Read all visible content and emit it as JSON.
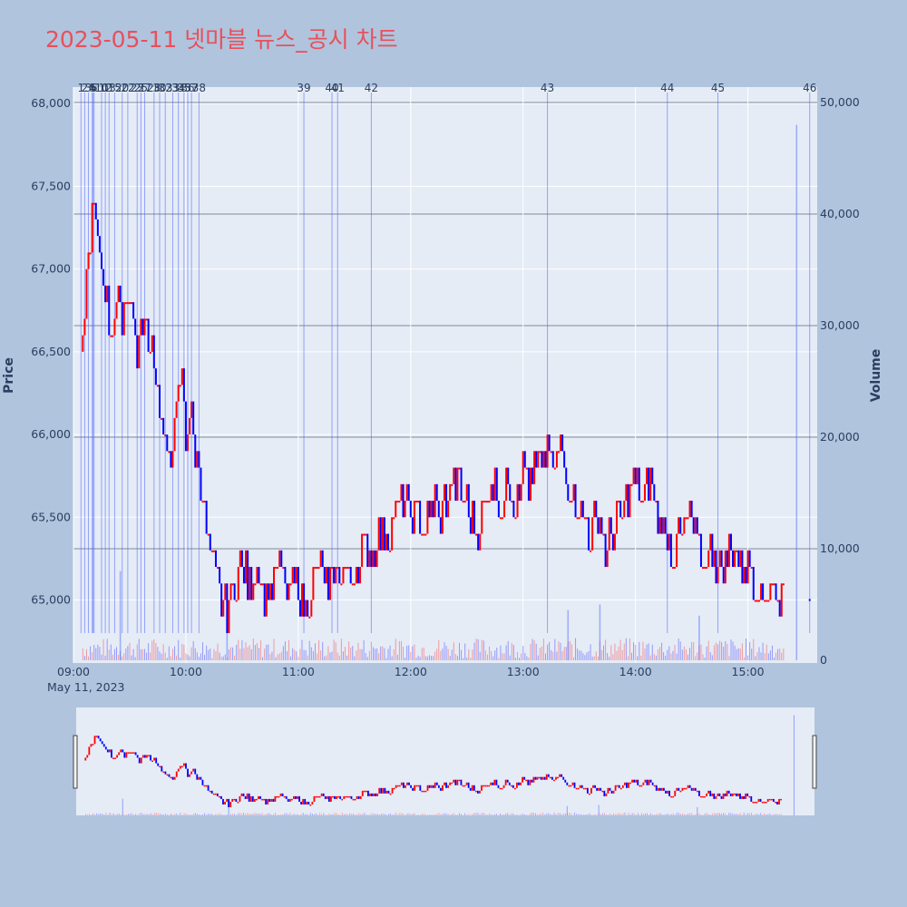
{
  "page": {
    "title": "2023-05-11 넷마블 뉴스_공시 차트",
    "title_color": "#e8505b",
    "background": "#b0c4de",
    "plot_background": "#e5ecf6"
  },
  "chart_data": {
    "type": "candlestick",
    "x_date_label": "May 11, 2023",
    "ylabel": "Price",
    "y2label": "Volume",
    "ylim": [
      64800,
      68100
    ],
    "y2lim": [
      0,
      51000
    ],
    "y_ticks": [
      {
        "v": 65000,
        "label": "65,000"
      },
      {
        "v": 65500,
        "label": "65,500"
      },
      {
        "v": 66000,
        "label": "66,000"
      },
      {
        "v": 66500,
        "label": "66,500"
      },
      {
        "v": 67000,
        "label": "67,000"
      },
      {
        "v": 67500,
        "label": "67,500"
      },
      {
        "v": 68000,
        "label": "68,000"
      }
    ],
    "y2_ticks": [
      {
        "v": 0,
        "label": "0"
      },
      {
        "v": 10000,
        "label": "10,000"
      },
      {
        "v": 20000,
        "label": "20,000"
      },
      {
        "v": 30000,
        "label": "30,000"
      },
      {
        "v": 40000,
        "label": "40,000"
      },
      {
        "v": 50000,
        "label": "50,000"
      }
    ],
    "x_range_minutes": [
      540,
      937
    ],
    "x_ticks": [
      {
        "m": 540,
        "label": "09:00"
      },
      {
        "m": 600,
        "label": "10:00"
      },
      {
        "m": 660,
        "label": "11:00"
      },
      {
        "m": 720,
        "label": "12:00"
      },
      {
        "m": 780,
        "label": "13:00"
      },
      {
        "m": 840,
        "label": "14:00"
      },
      {
        "m": 900,
        "label": "15:00"
      }
    ],
    "up_color": "#ff0000",
    "down_color": "#0000ff",
    "price_path": [
      [
        545,
        66500
      ],
      [
        547,
        67000
      ],
      [
        549,
        67200
      ],
      [
        551,
        67400
      ],
      [
        553,
        67100
      ],
      [
        556,
        67000
      ],
      [
        558,
        66800
      ],
      [
        560,
        66600
      ],
      [
        563,
        66800
      ],
      [
        566,
        66700
      ],
      [
        568,
        66800
      ],
      [
        570,
        66900
      ],
      [
        572,
        66700
      ],
      [
        574,
        66500
      ],
      [
        576,
        66600
      ],
      [
        578,
        66700
      ],
      [
        580,
        66500
      ],
      [
        582,
        66600
      ],
      [
        584,
        66300
      ],
      [
        586,
        66200
      ],
      [
        588,
        66000
      ],
      [
        590,
        65800
      ],
      [
        592,
        65900
      ],
      [
        594,
        66000
      ],
      [
        596,
        66200
      ],
      [
        598,
        66300
      ],
      [
        600,
        66000
      ],
      [
        602,
        66100
      ],
      [
        604,
        66000
      ],
      [
        606,
        65800
      ],
      [
        608,
        65700
      ],
      [
        610,
        65500
      ],
      [
        612,
        65300
      ],
      [
        614,
        65200
      ],
      [
        616,
        65100
      ],
      [
        618,
        65000
      ],
      [
        620,
        65000
      ],
      [
        622,
        64900
      ],
      [
        624,
        65000
      ],
      [
        626,
        65100
      ],
      [
        630,
        65200
      ],
      [
        634,
        65100
      ],
      [
        638,
        65200
      ],
      [
        642,
        65000
      ],
      [
        646,
        65100
      ],
      [
        650,
        65200
      ],
      [
        654,
        65000
      ],
      [
        658,
        65100
      ],
      [
        662,
        65000
      ],
      [
        664,
        64900
      ],
      [
        666,
        65000
      ],
      [
        668,
        65100
      ],
      [
        672,
        65200
      ],
      [
        676,
        65000
      ],
      [
        680,
        65200
      ],
      [
        684,
        65200
      ],
      [
        688,
        65100
      ],
      [
        692,
        65200
      ],
      [
        696,
        65300
      ],
      [
        700,
        65300
      ],
      [
        704,
        65400
      ],
      [
        708,
        65400
      ],
      [
        712,
        65500
      ],
      [
        716,
        65600
      ],
      [
        720,
        65500
      ],
      [
        724,
        65500
      ],
      [
        728,
        65400
      ],
      [
        732,
        65600
      ],
      [
        736,
        65500
      ],
      [
        740,
        65600
      ],
      [
        744,
        65700
      ],
      [
        748,
        65600
      ],
      [
        752,
        65500
      ],
      [
        756,
        65400
      ],
      [
        760,
        65600
      ],
      [
        764,
        65700
      ],
      [
        768,
        65500
      ],
      [
        772,
        65700
      ],
      [
        776,
        65600
      ],
      [
        780,
        65800
      ],
      [
        784,
        65700
      ],
      [
        788,
        65800
      ],
      [
        792,
        65900
      ],
      [
        796,
        65800
      ],
      [
        800,
        65900
      ],
      [
        804,
        65700
      ],
      [
        808,
        65600
      ],
      [
        812,
        65500
      ],
      [
        816,
        65400
      ],
      [
        820,
        65500
      ],
      [
        824,
        65300
      ],
      [
        828,
        65400
      ],
      [
        832,
        65500
      ],
      [
        836,
        65600
      ],
      [
        840,
        65700
      ],
      [
        844,
        65600
      ],
      [
        848,
        65700
      ],
      [
        852,
        65500
      ],
      [
        856,
        65400
      ],
      [
        860,
        65300
      ],
      [
        864,
        65400
      ],
      [
        868,
        65500
      ],
      [
        872,
        65400
      ],
      [
        876,
        65200
      ],
      [
        880,
        65300
      ],
      [
        884,
        65200
      ],
      [
        888,
        65200
      ],
      [
        892,
        65300
      ],
      [
        896,
        65200
      ],
      [
        900,
        65200
      ],
      [
        904,
        65100
      ],
      [
        908,
        65000
      ],
      [
        912,
        65100
      ],
      [
        916,
        65000
      ],
      [
        919,
        65100
      ]
    ],
    "volume_spikes": [
      {
        "m": 565,
        "v": 8000
      },
      {
        "m": 622,
        "v": 5000
      },
      {
        "m": 804,
        "v": 4500
      },
      {
        "m": 821,
        "v": 5000
      },
      {
        "m": 874,
        "v": 4000
      },
      {
        "m": 926,
        "v": 48000
      }
    ],
    "news_markers": [
      {
        "m": 544,
        "label": "1"
      },
      {
        "m": 546,
        "label": "2"
      },
      {
        "m": 548,
        "label": "3"
      },
      {
        "m": 550,
        "label": "4"
      },
      {
        "m": 550.5,
        "label": "5"
      },
      {
        "m": 551,
        "label": "6"
      },
      {
        "m": 555,
        "label": "10"
      },
      {
        "m": 557,
        "label": "12"
      },
      {
        "m": 559,
        "label": "13"
      },
      {
        "m": 562,
        "label": "15"
      },
      {
        "m": 566,
        "label": "20"
      },
      {
        "m": 569,
        "label": "22"
      },
      {
        "m": 574,
        "label": "23"
      },
      {
        "m": 576,
        "label": "25"
      },
      {
        "m": 578,
        "label": "27"
      },
      {
        "m": 583,
        "label": "28"
      },
      {
        "m": 586,
        "label": "30"
      },
      {
        "m": 589,
        "label": "32"
      },
      {
        "m": 593,
        "label": "33"
      },
      {
        "m": 596,
        "label": "34"
      },
      {
        "m": 599,
        "label": "35"
      },
      {
        "m": 601,
        "label": "36"
      },
      {
        "m": 603,
        "label": "37"
      },
      {
        "m": 607,
        "label": "38"
      },
      {
        "m": 663,
        "label": "39"
      },
      {
        "m": 678,
        "label": "40"
      },
      {
        "m": 681,
        "label": "41"
      },
      {
        "m": 699,
        "label": "42"
      },
      {
        "m": 793,
        "label": "43"
      },
      {
        "m": 857,
        "label": "44"
      },
      {
        "m": 884,
        "label": "45"
      },
      {
        "m": 933,
        "label": "46"
      }
    ]
  }
}
